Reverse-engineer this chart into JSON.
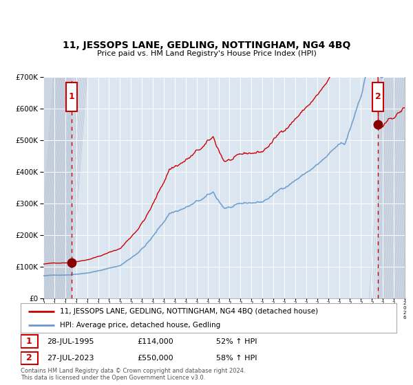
{
  "title": "11, JESSOPS LANE, GEDLING, NOTTINGHAM, NG4 4BQ",
  "subtitle": "Price paid vs. HM Land Registry's House Price Index (HPI)",
  "legend_line1": "11, JESSOPS LANE, GEDLING, NOTTINGHAM, NG4 4BQ (detached house)",
  "legend_line2": "HPI: Average price, detached house, Gedling",
  "annotation1_date": "28-JUL-1995",
  "annotation1_price": "£114,000",
  "annotation1_hpi": "52% ↑ HPI",
  "annotation2_date": "27-JUL-2023",
  "annotation2_price": "£550,000",
  "annotation2_hpi": "58% ↑ HPI",
  "footer": "Contains HM Land Registry data © Crown copyright and database right 2024.\nThis data is licensed under the Open Government Licence v3.0.",
  "sale1_year": 1995.56,
  "sale1_value": 114000,
  "sale2_year": 2023.56,
  "sale2_value": 550000,
  "red_line_color": "#cc0000",
  "blue_line_color": "#6699cc",
  "bg_color": "#dce6f1",
  "grid_color": "#ffffff",
  "dashed_line_color": "#cc0000",
  "box_color": "#cc0000",
  "ylim_max": 700000,
  "xmin": 1993,
  "xmax": 2026
}
